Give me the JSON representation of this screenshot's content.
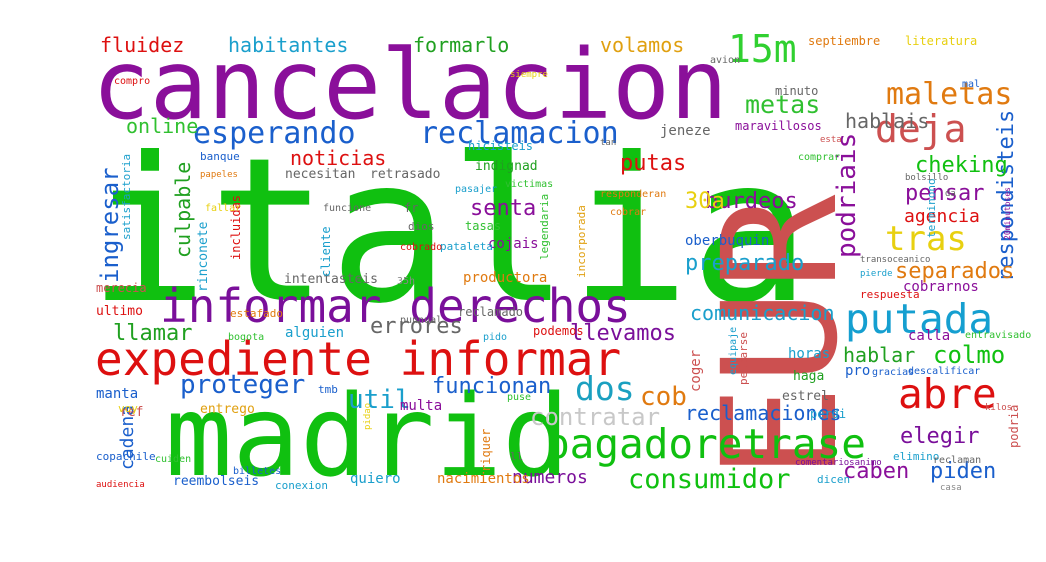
{
  "cloud": {
    "words": [
      {
        "text": "italia",
        "color": "#10c010"
      },
      {
        "text": "EUR",
        "color": "#cc5050"
      },
      {
        "text": "cancelacion",
        "color": "#8a0f9a"
      },
      {
        "text": "madrid",
        "color": "#10c010"
      },
      {
        "text": "expediente informar",
        "color": "#dd1010"
      },
      {
        "text": "informar derechos",
        "color": "#7a0f9a"
      },
      {
        "text": "pagadoretrase",
        "color": "#10c010"
      },
      {
        "text": "esperando",
        "color": "#1a5fcc"
      },
      {
        "text": "reclamacion",
        "color": "#1a5fcc"
      },
      {
        "text": "putada",
        "color": "#159fd0"
      },
      {
        "text": "abre",
        "color": "#dd1010"
      },
      {
        "text": "deja",
        "color": "#cc5050"
      },
      {
        "text": "maletas",
        "color": "#e07a10"
      },
      {
        "text": "15m",
        "color": "#30d030"
      },
      {
        "text": "tras",
        "color": "#e8d010"
      },
      {
        "text": "dos",
        "color": "#1aa0c0"
      },
      {
        "text": "consumidor",
        "color": "#10c010"
      },
      {
        "text": "noticias",
        "color": "#dd1010"
      },
      {
        "text": "putas",
        "color": "#dd1010"
      },
      {
        "text": "podriais",
        "color": "#8a0f9a"
      },
      {
        "text": "respondisteis",
        "color": "#1a5fcc"
      },
      {
        "text": "metas",
        "color": "#30c030"
      },
      {
        "text": "hablais",
        "color": "#666666"
      },
      {
        "text": "cheking",
        "color": "#10c010"
      },
      {
        "text": "pensar",
        "color": "#8a0f9a"
      },
      {
        "text": "agencia",
        "color": "#dd1010"
      },
      {
        "text": "separados",
        "color": "#e07a10"
      },
      {
        "text": "preparado",
        "color": "#1a9fcc"
      },
      {
        "text": "comunicacion",
        "color": "#1a9fcc"
      },
      {
        "text": "colmo",
        "color": "#10c010"
      },
      {
        "text": "hablar",
        "color": "#20a020"
      },
      {
        "text": "elegir",
        "color": "#7a0f9a"
      },
      {
        "text": "caben",
        "color": "#8a0f9a"
      },
      {
        "text": "piden",
        "color": "#1a5fcc"
      },
      {
        "text": "cob",
        "color": "#e07a10"
      },
      {
        "text": "contratar",
        "color": "#c8c8c8"
      },
      {
        "text": "reclamaciones",
        "color": "#1a5fcc"
      },
      {
        "text": "proteger",
        "color": "#1a5fcc"
      },
      {
        "text": "util",
        "color": "#1a9fcc"
      },
      {
        "text": "funcionan",
        "color": "#1a5fcc"
      },
      {
        "text": "llevamos",
        "color": "#7a0f9a"
      },
      {
        "text": "errores",
        "color": "#666666"
      },
      {
        "text": "llamar",
        "color": "#20a020"
      },
      {
        "text": "ingresar",
        "color": "#1a5fcc"
      },
      {
        "text": "culpable",
        "color": "#20a020"
      },
      {
        "text": "senta",
        "color": "#8a0f9a"
      },
      {
        "text": "burdeos",
        "color": "#8a0f9a"
      },
      {
        "text": "30a",
        "color": "#e8d010"
      },
      {
        "text": "fluidez",
        "color": "#dd1010"
      },
      {
        "text": "habitantes",
        "color": "#1a9fcc"
      },
      {
        "text": "formarlo",
        "color": "#20a020"
      },
      {
        "text": "volamos",
        "color": "#e0a010"
      },
      {
        "text": "online",
        "color": "#30c030"
      },
      {
        "text": "cadena",
        "color": "#1a5fcc"
      },
      {
        "text": "numeros",
        "color": "#7a0f9a"
      },
      {
        "text": "manta",
        "color": "#1a5fcc"
      },
      {
        "text": "entrego",
        "color": "#e0a010"
      },
      {
        "text": "ref",
        "color": "#cc5050"
      },
      {
        "text": "ultimo",
        "color": "#dd1010"
      },
      {
        "text": "merecia",
        "color": "#cc5050"
      },
      {
        "text": "rinconete",
        "color": "#1a9fcc"
      },
      {
        "text": "alguien",
        "color": "#1a9fcc"
      },
      {
        "text": "productora",
        "color": "#e07a10"
      },
      {
        "text": "intentasteis",
        "color": "#666666"
      },
      {
        "text": "35h",
        "color": "#888888"
      },
      {
        "text": "reclamado",
        "color": "#666666"
      },
      {
        "text": "oberbuquin",
        "color": "#1a5fcc"
      },
      {
        "text": "cojais",
        "color": "#8a0f9a"
      },
      {
        "text": "respuesta",
        "color": "#dd1010"
      },
      {
        "text": "cobrarnos",
        "color": "#8a0f9a"
      },
      {
        "text": "pierde",
        "color": "#1a9fcc"
      },
      {
        "text": "transoceanico",
        "color": "#666666"
      },
      {
        "text": "calla",
        "color": "#8a0f9a"
      },
      {
        "text": "horas",
        "color": "#1a9fcc"
      },
      {
        "text": "haga",
        "color": "#20a020"
      },
      {
        "text": "pro",
        "color": "#1a5fcc"
      },
      {
        "text": "gracias",
        "color": "#1a5fcc"
      },
      {
        "text": "descalificar",
        "color": "#1a5fcc"
      },
      {
        "text": "podria",
        "color": "#cc5050"
      },
      {
        "text": "estrel",
        "color": "#666666"
      },
      {
        "text": "perdi",
        "color": "#1a9fcc"
      },
      {
        "text": "elimino",
        "color": "#1a9fcc"
      },
      {
        "text": "reclaman",
        "color": "#666666"
      },
      {
        "text": "dicen",
        "color": "#1a9fcc"
      },
      {
        "text": "comentariosanimo",
        "color": "#7a0f9a"
      },
      {
        "text": "quiero",
        "color": "#1a9fcc"
      },
      {
        "text": "nacimientos",
        "color": "#e07a10"
      },
      {
        "text": "conexion",
        "color": "#1a9fcc"
      },
      {
        "text": "reembolseis",
        "color": "#1a5fcc"
      },
      {
        "text": "billetes",
        "color": "#1a5fcc"
      },
      {
        "text": "cuiden",
        "color": "#30c030"
      },
      {
        "text": "audiencia",
        "color": "#dd1010"
      },
      {
        "text": "copachile",
        "color": "#1a5fcc"
      },
      {
        "text": "multa",
        "color": "#8a0f9a"
      },
      {
        "text": "pidao",
        "color": "#e8d010"
      },
      {
        "text": "puse",
        "color": "#30c030"
      },
      {
        "text": "ll",
        "color": "#666666"
      },
      {
        "text": "riquer",
        "color": "#e07a10"
      },
      {
        "text": "podemos",
        "color": "#dd1010"
      },
      {
        "text": "pido",
        "color": "#1a9fcc"
      },
      {
        "text": "bogota",
        "color": "#30c030"
      },
      {
        "text": "voy",
        "color": "#e8d010"
      },
      {
        "text": "tmb",
        "color": "#1a5fcc"
      },
      {
        "text": "estafado",
        "color": "#e07a10"
      },
      {
        "text": "punnual",
        "color": "#666666"
      },
      {
        "text": "cliente",
        "color": "#1a9fcc"
      },
      {
        "text": "incluidas",
        "color": "#dd1010"
      },
      {
        "text": "pataleta",
        "color": "#1a9fcc"
      },
      {
        "text": "cobrado",
        "color": "#dd1010"
      },
      {
        "text": "funcione",
        "color": "#666666"
      },
      {
        "text": "fallar",
        "color": "#e8d010"
      },
      {
        "text": "satisfactoria",
        "color": "#1a9fcc"
      },
      {
        "text": "papeles",
        "color": "#e07a10"
      },
      {
        "text": "banque",
        "color": "#1a5fcc"
      },
      {
        "text": "dios",
        "color": "#666666"
      },
      {
        "text": "tasas",
        "color": "#30c030"
      },
      {
        "text": "fr",
        "color": "#666666"
      },
      {
        "text": "legendaria",
        "color": "#30c030"
      },
      {
        "text": "incorporada",
        "color": "#e0a010"
      },
      {
        "text": "cobrar",
        "color": "#e07a10"
      },
      {
        "text": "pasajer",
        "color": "#1a9fcc"
      },
      {
        "text": "victimas",
        "color": "#30c030"
      },
      {
        "text": "responderan",
        "color": "#e07a10"
      },
      {
        "text": "indignad",
        "color": "#20a020"
      },
      {
        "text": "retrasado",
        "color": "#666666"
      },
      {
        "text": "hicisteis",
        "color": "#1a9fcc"
      },
      {
        "text": "necesitan",
        "color": "#666666"
      },
      {
        "text": "jeneze",
        "color": "#666666"
      },
      {
        "text": "maravillosos",
        "color": "#8a0f9a"
      },
      {
        "text": "minuto",
        "color": "#666666"
      },
      {
        "text": "avion",
        "color": "#666666"
      },
      {
        "text": "septiembre",
        "color": "#e07a10"
      },
      {
        "text": "literatura",
        "color": "#e8d010"
      },
      {
        "text": "siempre",
        "color": "#e8d010"
      },
      {
        "text": "compro",
        "color": "#dd1010"
      },
      {
        "text": "mal",
        "color": "#1a5fcc"
      },
      {
        "text": "terminono",
        "color": "#1a9fcc"
      },
      {
        "text": "comprar",
        "color": "#30c030"
      },
      {
        "text": "bolsillo",
        "color": "#666666"
      },
      {
        "text": "da",
        "color": "#666666"
      },
      {
        "text": "20minutoses",
        "color": "#8a0f9a"
      },
      {
        "text": "tan",
        "color": "#666666"
      },
      {
        "text": "esta",
        "color": "#cc5050"
      },
      {
        "text": "coger",
        "color": "#cc5050"
      },
      {
        "text": "pelearse",
        "color": "#cc5050"
      },
      {
        "text": "equipaje",
        "color": "#1a9fcc"
      },
      {
        "text": "entravisado",
        "color": "#30c030"
      },
      {
        "text": "casa",
        "color": "#888888"
      },
      {
        "text": "kilos",
        "color": "#cc5050"
      }
    ]
  }
}
